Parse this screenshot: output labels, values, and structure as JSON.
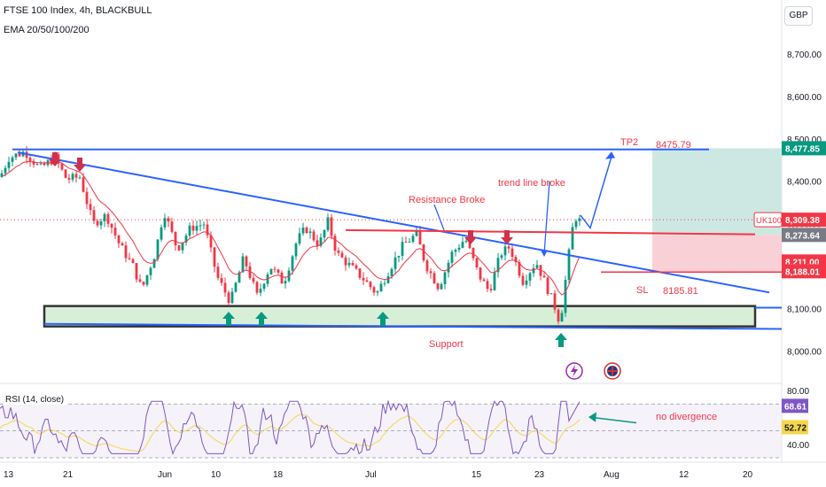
{
  "header": {
    "title": "FTSE 100 Index, 4h, BLACKBULL",
    "indicator": "EMA 20/50/100/200",
    "currency": "GBP"
  },
  "colors": {
    "up": "#089981",
    "down": "#f23645",
    "ema": "#f23645",
    "trend": "#2962ff",
    "resistance": "#f23645",
    "support_fill": "#d7efd7",
    "tp_zone": "#cde8e2",
    "sl_zone": "#f9d0d5",
    "rsi": "#7e57c2",
    "rsi_ma": "#f5d64a",
    "arrow_green": "#089981",
    "arrow_red": "#d0304a"
  },
  "chart_data": {
    "type": "candlestick",
    "title": "FTSE 100 Index, 4h, BLACKBULL",
    "ylim": [
      7930,
      8800
    ],
    "y_ticks": [
      "8,700.00",
      "8,600.00",
      "8,500.00",
      "8,400.00",
      "8,300.00",
      "8,200.00",
      "8,100.00",
      "8,000.00"
    ],
    "x_ticks": [
      "13",
      "21",
      "Jun",
      "10",
      "18",
      "Jul",
      "15",
      "23",
      "Aug",
      "12",
      "20"
    ],
    "grid": false,
    "series_shape": [
      [
        0,
        8410
      ],
      [
        10,
        8455
      ],
      [
        28,
        8470
      ],
      [
        45,
        8430
      ],
      [
        62,
        8455
      ],
      [
        75,
        8405
      ],
      [
        90,
        8410
      ],
      [
        105,
        8300
      ],
      [
        120,
        8320
      ],
      [
        135,
        8250
      ],
      [
        150,
        8200
      ],
      [
        160,
        8145
      ],
      [
        175,
        8230
      ],
      [
        185,
        8330
      ],
      [
        200,
        8240
      ],
      [
        215,
        8290
      ],
      [
        230,
        8300
      ],
      [
        245,
        8175
      ],
      [
        260,
        8115
      ],
      [
        275,
        8220
      ],
      [
        290,
        8130
      ],
      [
        305,
        8200
      ],
      [
        320,
        8160
      ],
      [
        335,
        8260
      ],
      [
        345,
        8290
      ],
      [
        360,
        8250
      ],
      [
        370,
        8305
      ],
      [
        380,
        8230
      ],
      [
        395,
        8200
      ],
      [
        410,
        8170
      ],
      [
        425,
        8135
      ],
      [
        440,
        8195
      ],
      [
        455,
        8250
      ],
      [
        470,
        8275
      ],
      [
        480,
        8205
      ],
      [
        495,
        8150
      ],
      [
        510,
        8230
      ],
      [
        525,
        8265
      ],
      [
        540,
        8180
      ],
      [
        552,
        8140
      ],
      [
        565,
        8230
      ],
      [
        575,
        8245
      ],
      [
        590,
        8165
      ],
      [
        605,
        8210
      ],
      [
        615,
        8160
      ],
      [
        625,
        8110
      ],
      [
        632,
        8065
      ],
      [
        640,
        8200
      ],
      [
        648,
        8318
      ],
      [
        655,
        8305
      ]
    ],
    "last_price": 8309.38,
    "price_labels": [
      {
        "text": "8,477.85",
        "value": 8477.85,
        "kind": "green"
      },
      {
        "text": "8,309.38",
        "value": 8309.38,
        "kind": "red",
        "tag": "UK100"
      },
      {
        "text": "8,273.64",
        "value": 8273.64,
        "kind": "gray"
      },
      {
        "text": "8,211.00",
        "value": 8211.0,
        "kind": "red"
      },
      {
        "text": "8,188.01",
        "value": 8188.01,
        "kind": "red"
      }
    ],
    "annotations": {
      "tp2": "TP2",
      "tp2_value": "8475.79",
      "sl": "SL",
      "sl_value": "8185.81",
      "resistance": "Resistance Broke",
      "trendline": "trend line broke",
      "support": "Support",
      "no_divergence": "no divergence"
    },
    "levels": {
      "tp": 8477.85,
      "entry": 8273.64,
      "sl": 8188.01,
      "resistance": 8285,
      "support_top": 8106,
      "support_bottom": 8058
    },
    "rsi": {
      "label": "RSI (14, close)",
      "ylim": [
        28,
        82
      ],
      "y_ticks": [
        "80.00",
        "40.00"
      ],
      "value_labels": [
        "68.61",
        "52.72"
      ],
      "values": [
        68.61,
        52.72
      ],
      "bands": [
        70,
        30
      ]
    }
  }
}
